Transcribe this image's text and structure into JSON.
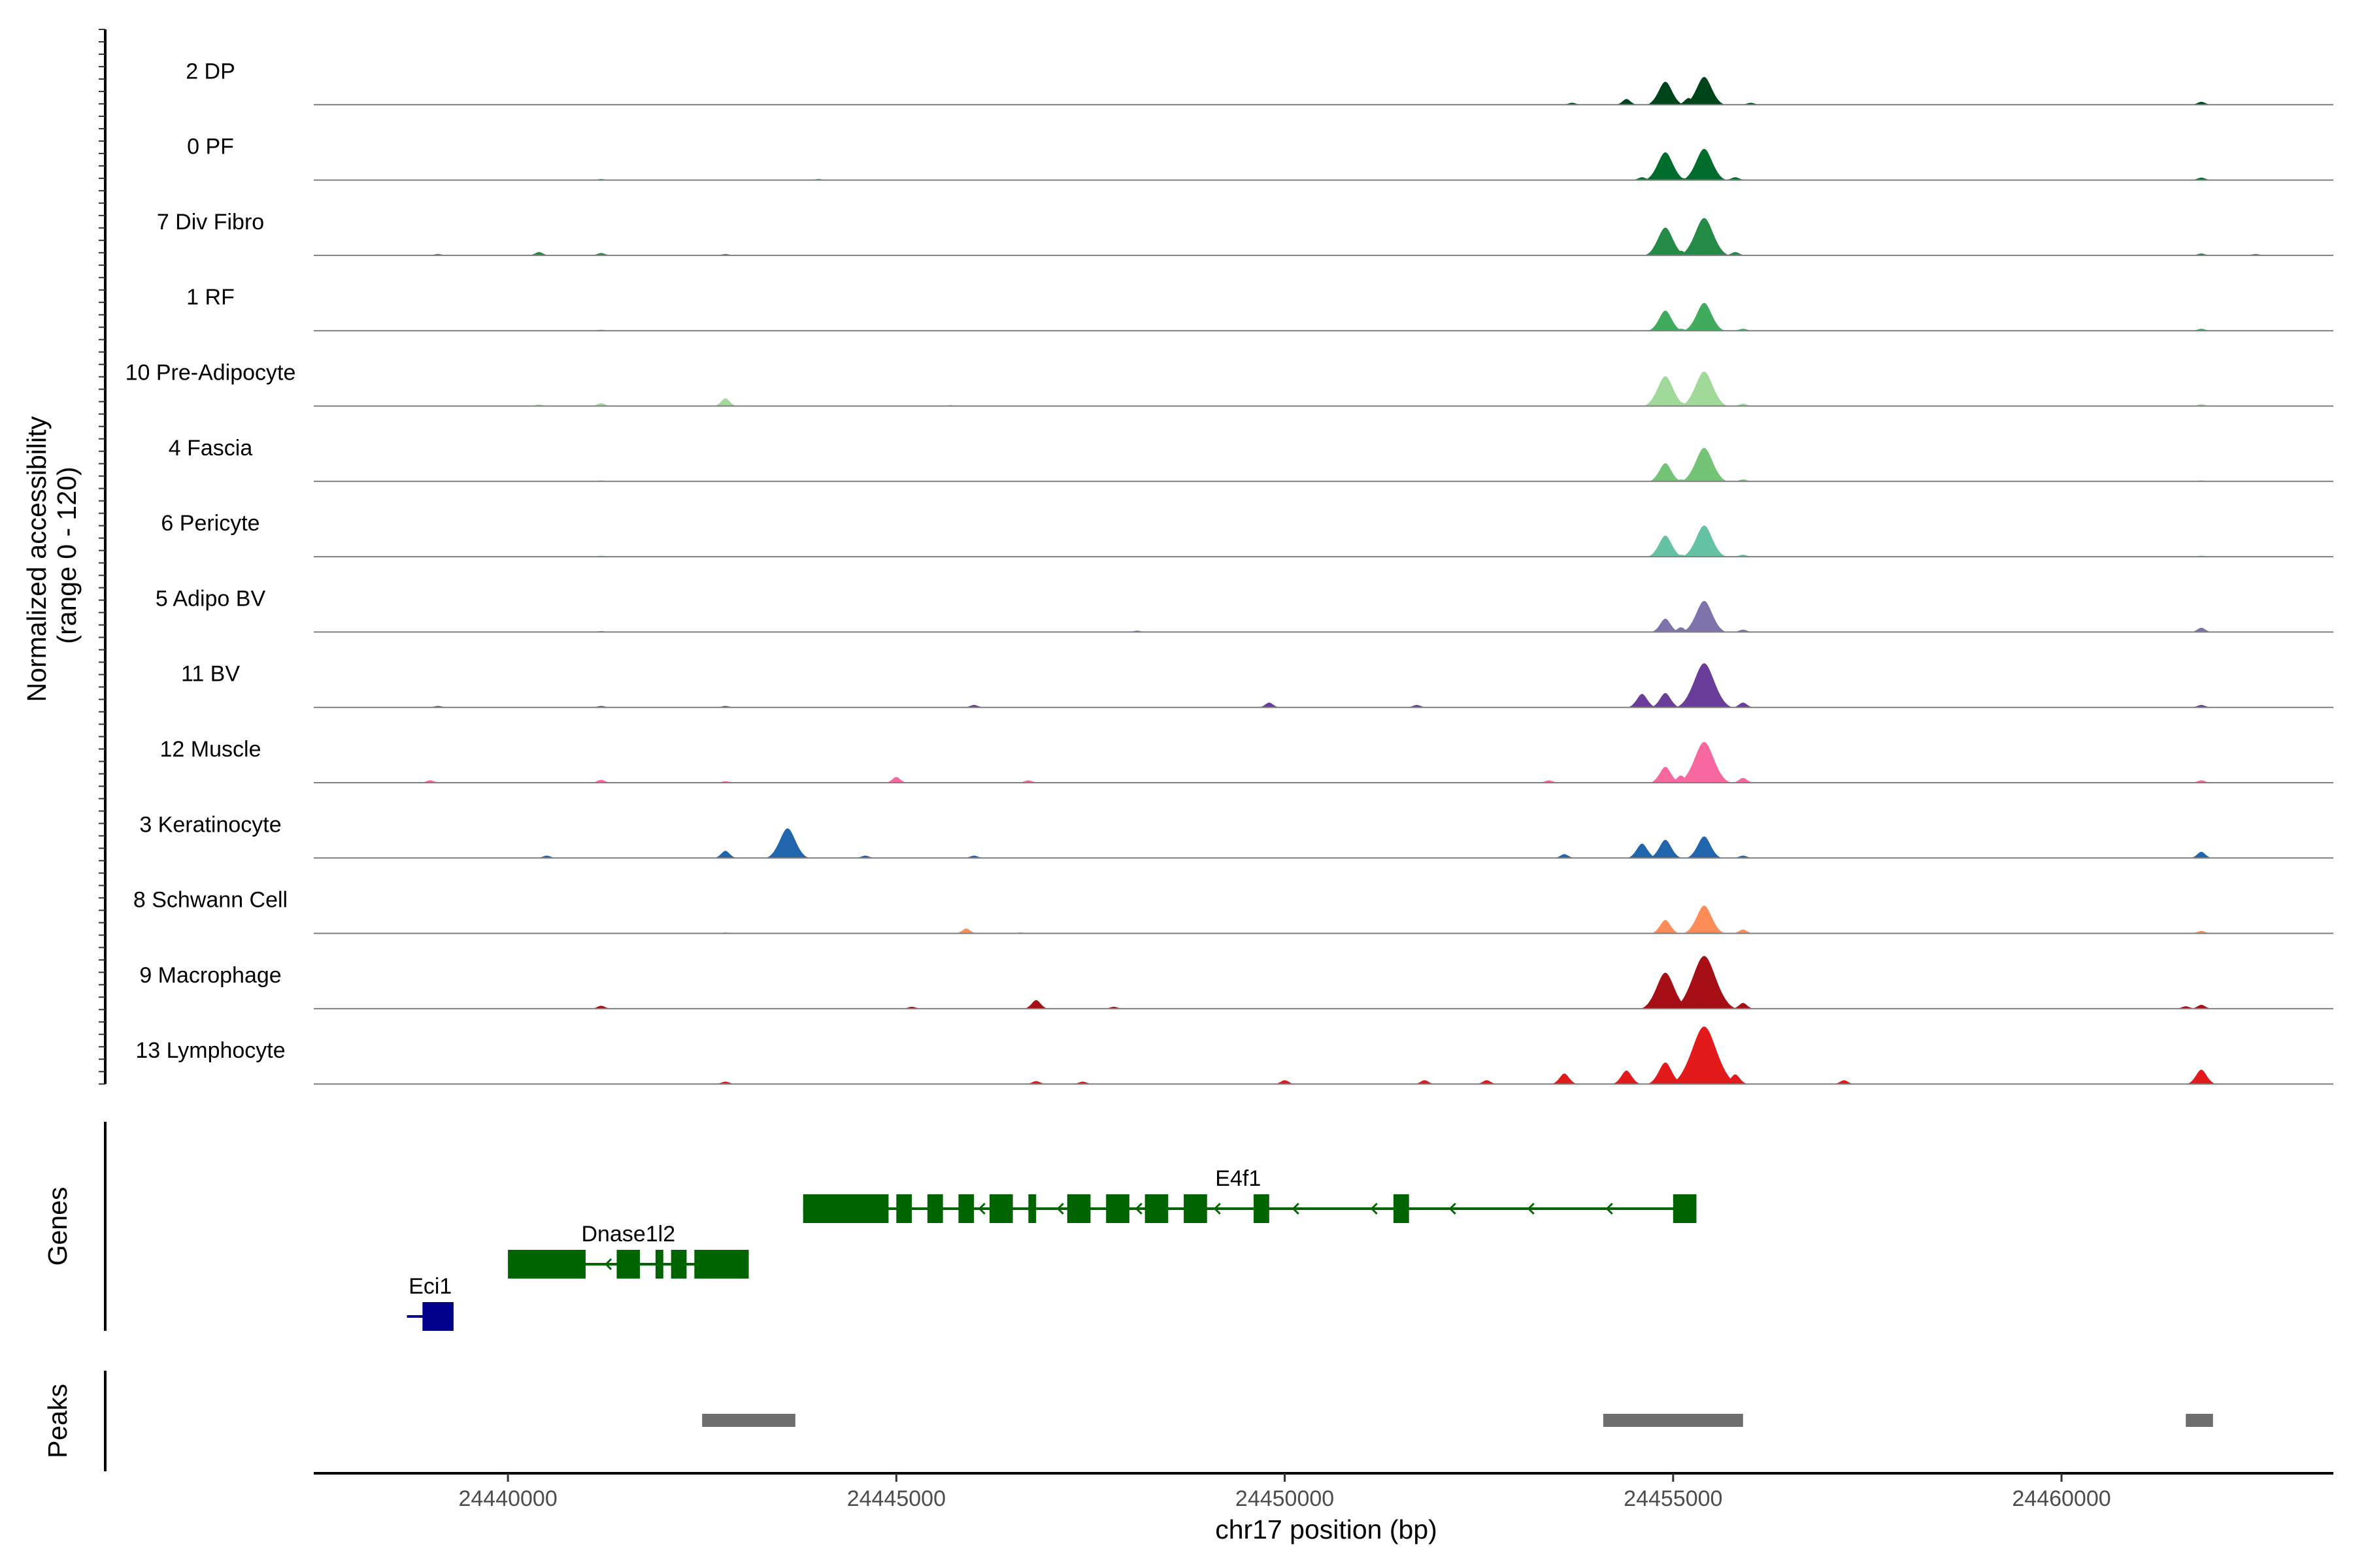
{
  "chart_data": {
    "type": "area",
    "chromosome": "chr17",
    "xlabel": "chr17 position (bp)",
    "ylabel": "Normalized accessibility\n(range 0 - 120)",
    "ylabel_lines": [
      "Normalized accessibility",
      "(range 0 - 120)"
    ],
    "y_range": [
      0,
      120
    ],
    "xlim": [
      24437500,
      24463500
    ],
    "x_ticks": [
      24440000,
      24445000,
      24450000,
      24455000,
      24460000
    ],
    "x_tick_labels": [
      "24440000",
      "24445000",
      "24450000",
      "24455000",
      "24460000"
    ],
    "series": [
      {
        "name": "2 DP",
        "color": "#00441b",
        "values": [
          [
            24444700,
            1
          ],
          [
            24453700,
            4
          ],
          [
            24454400,
            12
          ],
          [
            24454900,
            48
          ],
          [
            24455200,
            14
          ],
          [
            24455400,
            58
          ],
          [
            24456000,
            4
          ],
          [
            24461800,
            6
          ]
        ]
      },
      {
        "name": "0 PF",
        "color": "#006d2c",
        "values": [
          [
            24441200,
            2
          ],
          [
            24444000,
            2
          ],
          [
            24454600,
            6
          ],
          [
            24454900,
            58
          ],
          [
            24455100,
            5
          ],
          [
            24455400,
            65
          ],
          [
            24455800,
            6
          ],
          [
            24461800,
            5
          ]
        ]
      },
      {
        "name": "7 Div Fibro",
        "color": "#238b45",
        "values": [
          [
            24439100,
            3
          ],
          [
            24440400,
            7
          ],
          [
            24441200,
            5
          ],
          [
            24442800,
            3
          ],
          [
            24454900,
            58
          ],
          [
            24455100,
            10
          ],
          [
            24455400,
            78
          ],
          [
            24455800,
            7
          ],
          [
            24461800,
            4
          ],
          [
            24462500,
            3
          ]
        ]
      },
      {
        "name": "1 RF",
        "color": "#41ab5d",
        "values": [
          [
            24441200,
            2
          ],
          [
            24454900,
            42
          ],
          [
            24455100,
            4
          ],
          [
            24455400,
            58
          ],
          [
            24455900,
            4
          ],
          [
            24461800,
            4
          ]
        ]
      },
      {
        "name": "10 Pre-Adipocyte",
        "color": "#a1d99b",
        "values": [
          [
            24440400,
            3
          ],
          [
            24441200,
            6
          ],
          [
            24442800,
            16
          ],
          [
            24445700,
            2
          ],
          [
            24454900,
            62
          ],
          [
            24455100,
            8
          ],
          [
            24455400,
            72
          ],
          [
            24455900,
            5
          ],
          [
            24461800,
            4
          ]
        ]
      },
      {
        "name": "4 Fascia",
        "color": "#74c476",
        "values": [
          [
            24441200,
            2
          ],
          [
            24454900,
            38
          ],
          [
            24455100,
            4
          ],
          [
            24455400,
            70
          ],
          [
            24455900,
            4
          ],
          [
            24461800,
            2
          ]
        ]
      },
      {
        "name": "6 Pericyte",
        "color": "#66c2a4",
        "values": [
          [
            24441200,
            2
          ],
          [
            24454900,
            44
          ],
          [
            24455100,
            4
          ],
          [
            24455400,
            65
          ],
          [
            24455900,
            4
          ],
          [
            24461800,
            2
          ]
        ]
      },
      {
        "name": "5 Adipo BV",
        "color": "#8073ac",
        "values": [
          [
            24441200,
            2
          ],
          [
            24448100,
            3
          ],
          [
            24454900,
            28
          ],
          [
            24455100,
            10
          ],
          [
            24455400,
            65
          ],
          [
            24455900,
            5
          ],
          [
            24461800,
            9
          ]
        ]
      },
      {
        "name": "11 BV",
        "color": "#6a3d9a",
        "values": [
          [
            24439100,
            3
          ],
          [
            24441200,
            3
          ],
          [
            24442800,
            3
          ],
          [
            24446000,
            5
          ],
          [
            24449800,
            10
          ],
          [
            24451700,
            5
          ],
          [
            24454600,
            28
          ],
          [
            24454900,
            30
          ],
          [
            24455400,
            92
          ],
          [
            24455900,
            10
          ],
          [
            24461800,
            5
          ]
        ]
      },
      {
        "name": "12 Muscle",
        "color": "#f768a1",
        "values": [
          [
            24439000,
            5
          ],
          [
            24441200,
            6
          ],
          [
            24442800,
            3
          ],
          [
            24445000,
            12
          ],
          [
            24446700,
            5
          ],
          [
            24453400,
            5
          ],
          [
            24454900,
            33
          ],
          [
            24455100,
            15
          ],
          [
            24455400,
            85
          ],
          [
            24455900,
            10
          ],
          [
            24461800,
            5
          ]
        ]
      },
      {
        "name": "3 Keratinocyte",
        "color": "#2166ac",
        "values": [
          [
            24440500,
            5
          ],
          [
            24442800,
            15
          ],
          [
            24443600,
            62
          ],
          [
            24444600,
            5
          ],
          [
            24446000,
            5
          ],
          [
            24453600,
            8
          ],
          [
            24454600,
            30
          ],
          [
            24454900,
            38
          ],
          [
            24455400,
            45
          ],
          [
            24455900,
            5
          ],
          [
            24461800,
            13
          ]
        ]
      },
      {
        "name": "8 Schwann Cell",
        "color": "#fc8d59",
        "values": [
          [
            24442800,
            2
          ],
          [
            24445900,
            10
          ],
          [
            24446600,
            2
          ],
          [
            24454900,
            28
          ],
          [
            24455400,
            58
          ],
          [
            24455900,
            8
          ],
          [
            24461800,
            5
          ]
        ]
      },
      {
        "name": "9 Macrophage",
        "color": "#a50f15",
        "values": [
          [
            24441200,
            6
          ],
          [
            24445200,
            4
          ],
          [
            24446800,
            18
          ],
          [
            24447800,
            4
          ],
          [
            24454900,
            75
          ],
          [
            24455100,
            8
          ],
          [
            24455400,
            110
          ],
          [
            24455900,
            12
          ],
          [
            24461600,
            5
          ],
          [
            24461800,
            8
          ]
        ]
      },
      {
        "name": "13 Lymphocyte",
        "color": "#e31a1c",
        "values": [
          [
            24442800,
            5
          ],
          [
            24446800,
            6
          ],
          [
            24447400,
            5
          ],
          [
            24450000,
            8
          ],
          [
            24451800,
            8
          ],
          [
            24452600,
            8
          ],
          [
            24453600,
            22
          ],
          [
            24454400,
            28
          ],
          [
            24454900,
            45
          ],
          [
            24455400,
            120
          ],
          [
            24455800,
            20
          ],
          [
            24457200,
            8
          ],
          [
            24461800,
            30
          ]
        ]
      }
    ],
    "genes": [
      {
        "name": "E4f1",
        "color": "#006400",
        "strand": "-",
        "start": 24443800,
        "end": 24455300,
        "exons": [
          [
            24443800,
            24444900
          ],
          [
            24445000,
            24445200
          ],
          [
            24445400,
            24445600
          ],
          [
            24445800,
            24446000
          ],
          [
            24446200,
            24446500
          ],
          [
            24446700,
            24446800
          ],
          [
            24447200,
            24447500
          ],
          [
            24447700,
            24448000
          ],
          [
            24448200,
            24448500
          ],
          [
            24448700,
            24449000
          ],
          [
            24449600,
            24449800
          ],
          [
            24451400,
            24451600
          ],
          [
            24455000,
            24455300
          ]
        ]
      },
      {
        "name": "Dnase1l2",
        "color": "#006400",
        "strand": "-",
        "start": 24440000,
        "end": 24443100,
        "exons": [
          [
            24440000,
            24441000
          ],
          [
            24441400,
            24441700
          ],
          [
            24441900,
            24442000
          ],
          [
            24442100,
            24442300
          ],
          [
            24442400,
            24443100
          ]
        ]
      },
      {
        "name": "Eci1",
        "color": "#00008b",
        "strand": "-",
        "start": 24438700,
        "end": 24439300,
        "exons": [
          [
            24438900,
            24439300
          ]
        ]
      }
    ],
    "peaks": [
      [
        24442500,
        24443700
      ],
      [
        24454100,
        24455900
      ],
      [
        24461600,
        24461950
      ]
    ],
    "panel_labels": {
      "genes": "Genes",
      "peaks": "Peaks"
    },
    "grid": false
  }
}
